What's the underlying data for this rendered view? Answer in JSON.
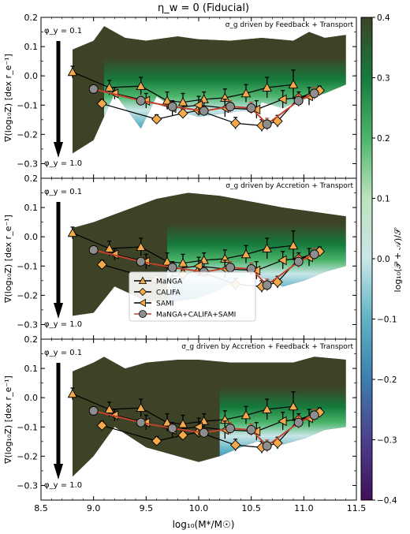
{
  "figure": {
    "title": "η_w = 0 (Fiducial)",
    "xlabel": "log₁₀(M*/M☉)",
    "ylabel": "∇(log₁₀Z) [dex r_e⁻¹]",
    "phi_top": "φ_y = 0.1",
    "phi_bottom": "φ_y = 1.0",
    "colorbar": {
      "label": "log₁₀(𝒫 + 𝒜)/𝒮",
      "min": -0.4,
      "max": 0.4,
      "ticks": [
        "0.4",
        "0.3",
        "0.2",
        "0.1",
        "0.0",
        "−0.1",
        "−0.2",
        "−0.3",
        "−0.4"
      ],
      "colors": [
        "#3f1158",
        "#4d3f8f",
        "#3c7eae",
        "#5fb3c4",
        "#c9e6e8",
        "#bde3bd",
        "#4cb56b",
        "#157b3d",
        "#3d4327"
      ]
    },
    "legend": {
      "placement": "lower-left (middle panel)",
      "entries": [
        "MaNGA",
        "CALIFA",
        "SAMI",
        "MaNGA+CALIFA+SAMI"
      ]
    }
  },
  "chart_data": [
    {
      "type": "area",
      "panel_label": "σ_g driven by Feedback + Transport",
      "xlim": [
        8.5,
        11.5
      ],
      "ylim": [
        -0.35,
        0.2
      ],
      "xticks": [
        "8.5",
        "9.0",
        "9.5",
        "10.0",
        "10.5",
        "11.0",
        "11.5"
      ],
      "yticks": [
        "0.2",
        "0.1",
        "0.0",
        "−0.1",
        "−0.2",
        "−0.3"
      ],
      "band_upper_x": [
        8.8,
        9.0,
        9.1,
        9.3,
        9.5,
        9.8,
        10.0,
        10.3,
        10.6,
        10.9,
        11.05,
        11.2,
        11.4
      ],
      "band_upper_y": [
        0.09,
        0.12,
        0.17,
        0.13,
        0.12,
        0.135,
        0.125,
        0.12,
        0.13,
        0.12,
        0.15,
        0.13,
        0.14
      ],
      "band_lower_x": [
        8.8,
        9.0,
        9.2,
        9.45,
        9.6,
        9.8,
        10.0,
        10.2,
        10.4,
        10.55,
        10.6,
        10.8,
        11.0,
        11.2,
        11.4
      ],
      "band_lower_y": [
        -0.265,
        -0.22,
        -0.06,
        -0.18,
        -0.07,
        -0.12,
        -0.14,
        -0.13,
        -0.12,
        -0.12,
        -0.09,
        -0.11,
        -0.08,
        -0.06,
        -0.03
      ],
      "band_green_from": 9.1
    },
    {
      "type": "area",
      "panel_label": "σ_g driven by Accretion + Transport",
      "xlim": [
        8.5,
        11.5
      ],
      "ylim": [
        -0.35,
        0.2
      ],
      "xticks": [
        "8.5",
        "9.0",
        "9.5",
        "10.0",
        "10.5",
        "11.0",
        "11.5"
      ],
      "yticks": [
        "0.2",
        "0.1",
        "0.0",
        "−0.1",
        "−0.2",
        "−0.3"
      ],
      "band_upper_x": [
        8.8,
        9.0,
        9.3,
        9.6,
        9.9,
        10.2,
        10.5,
        10.8,
        11.0,
        11.2,
        11.4
      ],
      "band_upper_y": [
        0.03,
        0.05,
        0.09,
        0.13,
        0.15,
        0.14,
        0.12,
        0.1,
        0.09,
        0.08,
        0.07
      ],
      "band_lower_x": [
        8.8,
        9.0,
        9.2,
        9.5,
        9.8,
        10.0,
        10.2,
        10.4,
        10.55,
        10.6,
        10.8,
        11.0,
        11.2,
        11.4
      ],
      "band_lower_y": [
        -0.27,
        -0.26,
        -0.17,
        -0.22,
        -0.22,
        -0.21,
        -0.18,
        -0.14,
        -0.12,
        -0.14,
        -0.17,
        -0.15,
        -0.12,
        -0.1
      ],
      "band_green_from": 9.7
    },
    {
      "type": "area",
      "panel_label": "σ_g driven by Accretion + Feedback + Transport",
      "xlim": [
        8.5,
        11.5
      ],
      "ylim": [
        -0.35,
        0.2
      ],
      "xticks": [
        "8.5",
        "9.0",
        "9.5",
        "10.0",
        "10.5",
        "11.0",
        "11.5"
      ],
      "yticks": [
        "0.2",
        "0.1",
        "0.0",
        "−0.1",
        "−0.2",
        "−0.3"
      ],
      "band_upper_x": [
        8.8,
        9.0,
        9.1,
        9.3,
        9.5,
        9.8,
        10.0,
        10.3,
        10.6,
        10.9,
        11.1,
        11.4
      ],
      "band_upper_y": [
        0.09,
        0.12,
        0.14,
        0.1,
        0.12,
        0.13,
        0.13,
        0.12,
        0.12,
        0.12,
        0.14,
        0.13
      ],
      "band_lower_x": [
        8.8,
        9.0,
        9.2,
        9.5,
        9.8,
        10.0,
        10.2,
        10.4,
        10.55,
        10.6,
        10.8,
        11.0,
        11.2,
        11.4
      ],
      "band_lower_y": [
        -0.27,
        -0.2,
        -0.1,
        -0.17,
        -0.2,
        -0.22,
        -0.2,
        -0.17,
        -0.15,
        -0.15,
        -0.16,
        -0.14,
        -0.11,
        -0.1
      ],
      "band_green_from": 10.2
    }
  ],
  "observations": [
    {
      "name": "MaNGA",
      "marker": "triangle-up",
      "color": "#f5a94b",
      "x": [
        8.8,
        9.15,
        9.45,
        9.7,
        9.85,
        10.05,
        10.25,
        10.45,
        10.65,
        10.9
      ],
      "y": [
        0.013,
        -0.04,
        -0.035,
        -0.085,
        -0.09,
        -0.08,
        -0.075,
        -0.06,
        -0.04,
        -0.03
      ],
      "err": [
        0.02,
        0.025,
        0.03,
        0.03,
        0.03,
        0.025,
        0.03,
        0.03,
        0.035,
        0.05
      ]
    },
    {
      "name": "CALIFA",
      "marker": "diamond",
      "color": "#f5a94b",
      "x": [
        9.08,
        9.6,
        9.85,
        10.0,
        10.35,
        10.6,
        10.75,
        10.95,
        11.15
      ],
      "y": [
        -0.095,
        -0.148,
        -0.128,
        -0.118,
        -0.162,
        -0.17,
        -0.155,
        -0.075,
        -0.05
      ],
      "err": [
        0.015,
        0.015,
        0.015,
        0.015,
        0.02,
        0.02,
        0.02,
        0.02,
        0.015
      ]
    },
    {
      "name": "SAMI",
      "marker": "triangle-left",
      "color": "#f5a94b",
      "x": [
        9.2,
        9.5,
        9.75,
        10.0,
        10.25,
        10.55,
        10.8,
        11.05
      ],
      "y": [
        -0.06,
        -0.085,
        -0.11,
        -0.1,
        -0.11,
        -0.115,
        -0.08,
        -0.07
      ],
      "err": [
        0.02,
        0.025,
        0.025,
        0.03,
        0.03,
        0.03,
        0.03,
        0.03
      ]
    },
    {
      "name": "MaNGA+CALIFA+SAMI",
      "marker": "circle",
      "color": "#8e8e8e",
      "line_color": "#c1442e",
      "x": [
        9.0,
        9.45,
        9.75,
        10.05,
        10.3,
        10.5,
        10.65,
        10.95,
        11.1
      ],
      "y": [
        -0.045,
        -0.085,
        -0.105,
        -0.12,
        -0.105,
        -0.11,
        -0.165,
        -0.085,
        -0.06
      ],
      "err": [
        0.01,
        0.015,
        0.015,
        0.015,
        0.02,
        0.02,
        0.02,
        0.02,
        0.02
      ]
    }
  ]
}
